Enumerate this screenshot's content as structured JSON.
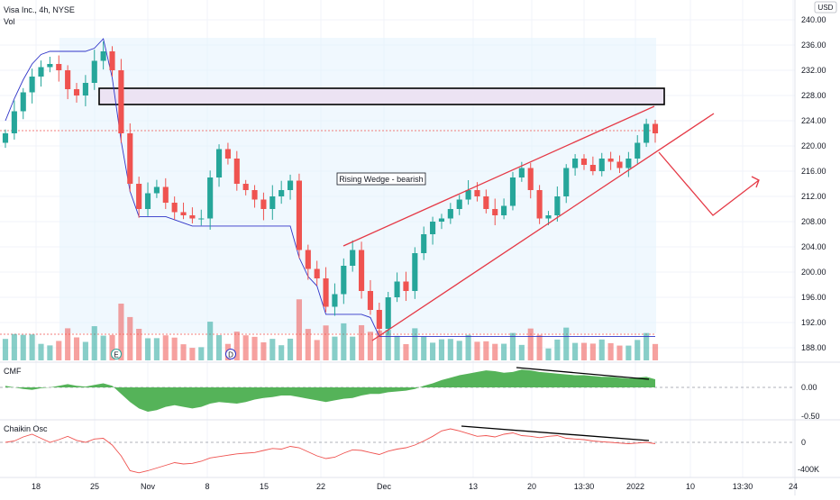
{
  "header": {
    "symbol_line": "Visa Inc., 4h, NYSE",
    "vol_label": "Vol",
    "currency": "USD"
  },
  "panes": {
    "cmf_label": "CMF",
    "chaikin_label": "Chaikin Osc"
  },
  "event_markers": {
    "earnings": "E",
    "dividend": "D"
  },
  "annotation": {
    "pattern_label": "Rising Wedge - bearish"
  },
  "colors": {
    "up": "#26a69a",
    "down": "#ef5350",
    "trend": "#e53946",
    "vwap": "#2f34c8",
    "cmf_fill": "#4caf50",
    "range_fill": "#e3f2fd",
    "zone_fill": "#ece3f3"
  },
  "chart_data": [
    {
      "type": "candlestick",
      "title": "Visa Inc., 4h, NYSE",
      "x_tick_labels": [
        "18",
        "25",
        "Nov",
        "8",
        "15",
        "22",
        "Dec",
        "13",
        "20",
        "13:30",
        "2022",
        "10",
        "13:30",
        "24"
      ],
      "y_tick_labels": [
        "240.00",
        "236.00",
        "232.00",
        "228.00",
        "224.00",
        "220.00",
        "216.00",
        "212.00",
        "208.00",
        "204.00",
        "200.00",
        "196.00",
        "192.00",
        "188.00"
      ],
      "ylim": [
        187,
        241
      ],
      "yunit": "USD",
      "closes": [
        222.0,
        225.5,
        228.5,
        231.0,
        232.5,
        233.0,
        232.0,
        229.0,
        228.0,
        230.0,
        233.5,
        235.0,
        232.0,
        222.0,
        214.0,
        210.0,
        212.5,
        213.5,
        211.0,
        209.5,
        209.0,
        208.5,
        208.5,
        215.0,
        219.5,
        218.0,
        214.0,
        213.0,
        211.5,
        210.0,
        212.0,
        213.0,
        214.5,
        203.5,
        200.5,
        199.0,
        194.5,
        196.5,
        201.0,
        203.5,
        197.0,
        194.0,
        191.0,
        196.0,
        198.5,
        197.0,
        203.0,
        206.0,
        208.0,
        208.5,
        210.0,
        211.5,
        213.0,
        212.0,
        210.0,
        209.0,
        210.5,
        215.0,
        216.5,
        213.0,
        208.5,
        209.0,
        212.0,
        216.5,
        218.0,
        217.0,
        216.0,
        218.0,
        217.5,
        216.5,
        218.0,
        220.5,
        223.5,
        222.0
      ],
      "volume_label": "Vol",
      "cmf": {
        "label": "CMF",
        "tick_labels": [
          "0.00",
          "-0.50"
        ],
        "values": [
          0.02,
          0.0,
          -0.02,
          -0.03,
          -0.01,
          0.0,
          0.02,
          0.04,
          0.02,
          0.01,
          0.03,
          0.05,
          0.02,
          -0.08,
          -0.18,
          -0.26,
          -0.3,
          -0.28,
          -0.24,
          -0.22,
          -0.24,
          -0.26,
          -0.24,
          -0.2,
          -0.18,
          -0.19,
          -0.2,
          -0.18,
          -0.15,
          -0.13,
          -0.12,
          -0.1,
          -0.1,
          -0.12,
          -0.14,
          -0.16,
          -0.18,
          -0.16,
          -0.14,
          -0.13,
          -0.1,
          -0.08,
          -0.08,
          -0.06,
          -0.05,
          -0.04,
          -0.02,
          0.02,
          0.05,
          0.09,
          0.12,
          0.15,
          0.17,
          0.19,
          0.21,
          0.2,
          0.18,
          0.19,
          0.22,
          0.21,
          0.19,
          0.18,
          0.17,
          0.16,
          0.15,
          0.15,
          0.14,
          0.13,
          0.13,
          0.12,
          0.11,
          0.12,
          0.13,
          0.1
        ]
      },
      "chaikin_osc": {
        "label": "Chaikin Osc",
        "tick_labels": [
          "0",
          "-400K"
        ],
        "values": [
          0,
          20,
          80,
          120,
          60,
          0,
          40,
          90,
          30,
          0,
          50,
          60,
          -40,
          -200,
          -420,
          -450,
          -420,
          -380,
          -340,
          -300,
          -320,
          -310,
          -280,
          -230,
          -210,
          -190,
          -170,
          -160,
          -150,
          -120,
          -90,
          -100,
          -60,
          -80,
          -140,
          -200,
          -240,
          -220,
          -160,
          -110,
          -120,
          -150,
          -180,
          -130,
          -100,
          -80,
          -40,
          20,
          90,
          170,
          200,
          170,
          130,
          90,
          100,
          80,
          120,
          140,
          100,
          90,
          70,
          90,
          100,
          60,
          50,
          40,
          20,
          10,
          0,
          -10,
          -20,
          -10,
          0,
          -20
        ]
      },
      "last_price_line": 222.0
    }
  ]
}
